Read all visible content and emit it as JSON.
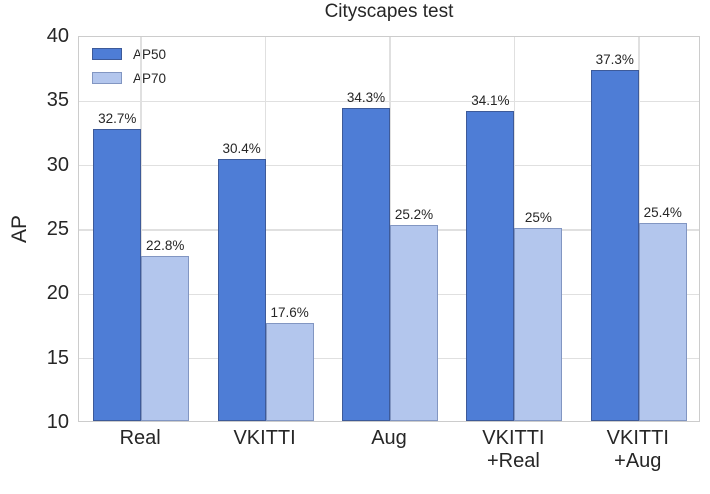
{
  "chart_data": {
    "type": "bar",
    "title": "Cityscapes test",
    "ylabel": "AP",
    "xlabel": "",
    "ylim": [
      10,
      40
    ],
    "yticks": [
      10,
      15,
      20,
      25,
      30,
      35,
      40
    ],
    "grid": true,
    "legend_position": "upper left",
    "categories": [
      "Real",
      "VKITTI",
      "Aug",
      "VKITTI\n+Real",
      "VKITTI\n+Aug"
    ],
    "series": [
      {
        "name": "AP50",
        "values": [
          32.7,
          30.4,
          34.3,
          34.1,
          37.3
        ],
        "labels": [
          "32.7%",
          "30.4%",
          "34.3%",
          "34.1%",
          "37.3%"
        ],
        "fill": "#4E7DD6",
        "edge": "#3D5A99"
      },
      {
        "name": "AP70",
        "values": [
          22.8,
          17.6,
          25.2,
          25.0,
          25.4
        ],
        "labels": [
          "22.8%",
          "17.6%",
          "25.2%",
          "25%",
          "25.4%"
        ],
        "fill": "#B3C6ED",
        "edge": "#8296C2"
      }
    ],
    "colors": {
      "grid": "#E0E0E0",
      "plot_border": "#CCCCCC",
      "text": "#262626"
    }
  }
}
